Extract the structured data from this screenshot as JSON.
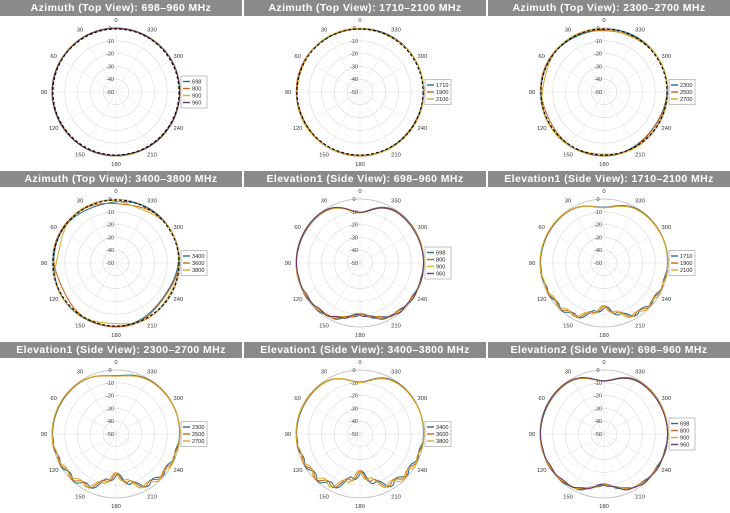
{
  "colors": {
    "series": [
      "#2a6f86",
      "#c7661f",
      "#d6ad2c",
      "#6a3c62"
    ],
    "title_bg": "#8a8a8a",
    "reference": "#000000"
  },
  "chart_data": [
    {
      "type": "polar",
      "title": "Azimuth (Top View): 698–960 MHz",
      "angle_labels": [
        "0",
        "30",
        "60",
        "90",
        "120",
        "150",
        "180",
        "210",
        "240",
        "270",
        "300",
        "330"
      ],
      "radial_labels": [
        "0",
        "-10",
        "-20",
        "-30",
        "-40",
        "-50"
      ],
      "rlim": [
        -50,
        0
      ],
      "legend": [
        "698",
        "800",
        "900",
        "960"
      ],
      "series_count": 4,
      "reference": true,
      "pattern": {
        "kind": "omni",
        "variation_db": 0.6
      }
    },
    {
      "type": "polar",
      "title": "Azimuth (Top View): 1710–2100 MHz",
      "angle_labels": [
        "0",
        "30",
        "60",
        "90",
        "120",
        "150",
        "180",
        "210",
        "240",
        "270",
        "300",
        "330"
      ],
      "radial_labels": [
        "0",
        "-10",
        "-20",
        "-30",
        "-40",
        "-50"
      ],
      "rlim": [
        -50,
        0
      ],
      "legend": [
        "1710",
        "1900",
        "2100"
      ],
      "series_count": 3,
      "reference": true,
      "pattern": {
        "kind": "omni",
        "variation_db": 1.2
      }
    },
    {
      "type": "polar",
      "title": "Azimuth (Top View): 2300–2700 MHz",
      "angle_labels": [
        "0",
        "30",
        "60",
        "90",
        "120",
        "150",
        "180",
        "210",
        "240",
        "270",
        "300",
        "330"
      ],
      "radial_labels": [
        "0",
        "-10",
        "-20",
        "-30",
        "-40",
        "-50"
      ],
      "rlim": [
        -50,
        0
      ],
      "legend": [
        "2300",
        "2500",
        "2700"
      ],
      "series_count": 3,
      "reference": true,
      "pattern": {
        "kind": "omni",
        "variation_db": 2.5
      }
    },
    {
      "type": "polar",
      "title": "Azimuth (Top View): 3400–3800 MHz",
      "angle_labels": [
        "0",
        "30",
        "60",
        "90",
        "120",
        "150",
        "180",
        "210",
        "240",
        "270",
        "300",
        "330"
      ],
      "radial_labels": [
        "0",
        "-10",
        "-20",
        "-30",
        "-40",
        "-50"
      ],
      "rlim": [
        -50,
        0
      ],
      "legend": [
        "3400",
        "3600",
        "3800"
      ],
      "series_count": 3,
      "reference": true,
      "pattern": {
        "kind": "omni",
        "variation_db": 4.5
      }
    },
    {
      "type": "polar",
      "title": "Elevation1 (Side View): 698–960 MHz",
      "angle_labels": [
        "0",
        "30",
        "60",
        "90",
        "120",
        "150",
        "180",
        "210",
        "240",
        "270",
        "300",
        "330"
      ],
      "radial_labels": [
        "0",
        "-10",
        "-20",
        "-30",
        "-40",
        "-50"
      ],
      "rlim": [
        -50,
        0
      ],
      "legend": [
        "698",
        "800",
        "900",
        "960"
      ],
      "series_count": 4,
      "reference": false,
      "pattern": {
        "kind": "elev",
        "nulls": [
          0,
          180
        ],
        "null_depth_db": [
          10,
          8
        ],
        "ripple_db": 2
      }
    },
    {
      "type": "polar",
      "title": "Elevation1 (Side View): 1710–2100 MHz",
      "angle_labels": [
        "0",
        "30",
        "60",
        "90",
        "120",
        "150",
        "180",
        "210",
        "240",
        "270",
        "300",
        "330"
      ],
      "radial_labels": [
        "0",
        "-10",
        "-20",
        "-30",
        "-40",
        "-50"
      ],
      "rlim": [
        -50,
        0
      ],
      "legend": [
        "1710",
        "1900",
        "2100"
      ],
      "series_count": 3,
      "reference": false,
      "pattern": {
        "kind": "elev",
        "nulls": [
          0,
          180
        ],
        "null_depth_db": [
          6,
          12
        ],
        "ripple_db": 4
      }
    },
    {
      "type": "polar",
      "title": "Elevation1 (Side View): 2300–2700 MHz",
      "angle_labels": [
        "0",
        "30",
        "60",
        "90",
        "120",
        "150",
        "180",
        "210",
        "240",
        "270",
        "300",
        "330"
      ],
      "radial_labels": [
        "0",
        "-10",
        "-20",
        "-30",
        "-40",
        "-50"
      ],
      "rlim": [
        -50,
        0
      ],
      "legend": [
        "2300",
        "2500",
        "2700"
      ],
      "series_count": 3,
      "reference": false,
      "pattern": {
        "kind": "elev",
        "nulls": [
          0,
          180
        ],
        "null_depth_db": [
          4,
          14
        ],
        "ripple_db": 5
      }
    },
    {
      "type": "polar",
      "title": "Elevation1 (Side View): 3400–3800 MHz",
      "angle_labels": [
        "0",
        "30",
        "60",
        "90",
        "120",
        "150",
        "180",
        "210",
        "240",
        "270",
        "300",
        "330"
      ],
      "radial_labels": [
        "0",
        "-10",
        "-20",
        "-30",
        "-40",
        "-50"
      ],
      "rlim": [
        -50,
        0
      ],
      "legend": [
        "3400",
        "3600",
        "3800"
      ],
      "series_count": 3,
      "reference": false,
      "pattern": {
        "kind": "elev",
        "nulls": [
          0,
          180
        ],
        "null_depth_db": [
          9,
          15
        ],
        "ripple_db": 6
      }
    },
    {
      "type": "polar",
      "title": "Elevation2 (Side View): 698–960 MHz",
      "angle_labels": [
        "0",
        "30",
        "60",
        "90",
        "120",
        "150",
        "180",
        "210",
        "240",
        "270",
        "300",
        "330"
      ],
      "radial_labels": [
        "0",
        "-10",
        "-20",
        "-30",
        "-40",
        "-50"
      ],
      "rlim": [
        -50,
        0
      ],
      "legend": [
        "698",
        "800",
        "900",
        "960"
      ],
      "series_count": 4,
      "reference": false,
      "pattern": {
        "kind": "elev",
        "nulls": [
          0,
          180
        ],
        "null_depth_db": [
          8,
          9
        ],
        "ripple_db": 1.5
      }
    }
  ]
}
